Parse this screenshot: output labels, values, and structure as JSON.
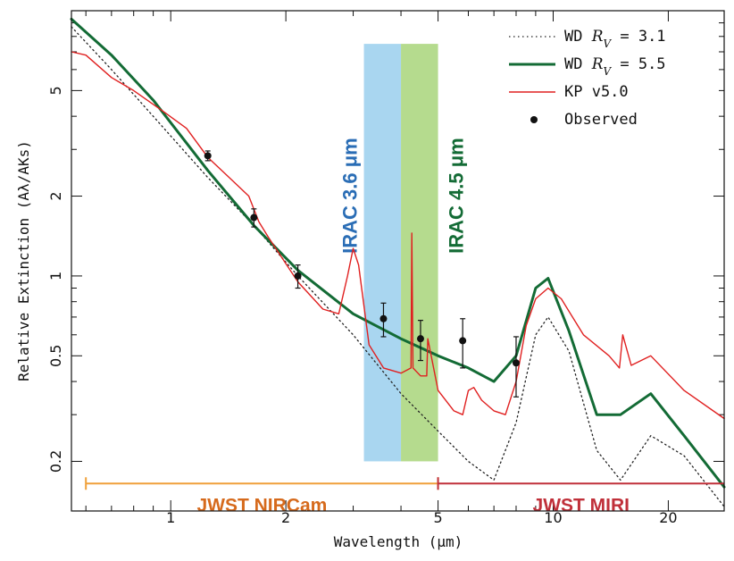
{
  "chart_data": {
    "type": "line",
    "xlabel": "Wavelength (μm)",
    "ylabel": "Relative Extinction (Aλ/AKs)",
    "xscale": "log",
    "yscale": "log",
    "xlim": [
      0.55,
      28
    ],
    "ylim": [
      0.13,
      10
    ],
    "xticks": [
      {
        "value": 1,
        "label": "1"
      },
      {
        "value": 2,
        "label": "2"
      },
      {
        "value": 5,
        "label": "5"
      },
      {
        "value": 10,
        "label": "10"
      },
      {
        "value": 20,
        "label": "20"
      }
    ],
    "yticks": [
      {
        "value": 0.2,
        "label": "0.2"
      },
      {
        "value": 0.5,
        "label": "0.5"
      },
      {
        "value": 1,
        "label": "1"
      },
      {
        "value": 2,
        "label": "2"
      },
      {
        "value": 5,
        "label": "5"
      }
    ],
    "legend": {
      "placement": "top-right",
      "entries": [
        {
          "label": "WD RV = 3.1",
          "prefix": "WD ",
          "rv": "R",
          "rv_sub": "V",
          "suffix": " = 3.1",
          "color": "#222222",
          "style": "dotted"
        },
        {
          "label": "WD RV = 5.5",
          "prefix": "WD ",
          "rv": "R",
          "rv_sub": "V",
          "suffix": " = 5.5",
          "color": "#136b35",
          "style": "solid-thick"
        },
        {
          "label": "KP v5.0",
          "prefix": "KP v5.0",
          "rv": "",
          "rv_sub": "",
          "suffix": "",
          "color": "#e02020",
          "style": "solid"
        },
        {
          "label": "Observed",
          "prefix": "Observed",
          "rv": "",
          "rv_sub": "",
          "suffix": "",
          "color": "#111111",
          "style": "marker"
        }
      ]
    },
    "series": [
      {
        "name": "WD RV = 3.1",
        "color": "#222222",
        "style": "dotted",
        "x": [
          0.55,
          0.7,
          0.9,
          1.25,
          1.65,
          2.15,
          3.0,
          4.0,
          5.0,
          6.0,
          7.0,
          8.0,
          9.0,
          9.7,
          11.0,
          13.0,
          15.0,
          18.0,
          22.0,
          28.0
        ],
        "y": [
          8.7,
          6.0,
          4.0,
          2.35,
          1.55,
          1.0,
          0.6,
          0.36,
          0.26,
          0.2,
          0.17,
          0.28,
          0.6,
          0.7,
          0.52,
          0.22,
          0.17,
          0.25,
          0.21,
          0.135
        ]
      },
      {
        "name": "WD RV = 5.5",
        "color": "#136b35",
        "style": "solid",
        "x": [
          0.55,
          0.7,
          0.9,
          1.25,
          1.65,
          2.15,
          3.0,
          4.0,
          5.0,
          6.0,
          7.0,
          8.0,
          9.0,
          9.7,
          11.0,
          13.0,
          15.0,
          18.0,
          22.0,
          28.0
        ],
        "y": [
          9.3,
          6.8,
          4.6,
          2.5,
          1.55,
          1.05,
          0.72,
          0.58,
          0.5,
          0.45,
          0.4,
          0.5,
          0.9,
          0.98,
          0.62,
          0.3,
          0.3,
          0.36,
          0.25,
          0.16
        ]
      },
      {
        "name": "KP v5.0",
        "color": "#e02020",
        "style": "solid",
        "x": [
          0.55,
          0.6,
          0.7,
          0.8,
          0.95,
          1.1,
          1.25,
          1.4,
          1.6,
          1.7,
          1.8,
          2.15,
          2.5,
          2.75,
          2.9,
          3.0,
          3.1,
          3.3,
          3.6,
          4.0,
          4.25,
          4.27,
          4.3,
          4.5,
          4.67,
          4.7,
          5.0,
          5.5,
          5.8,
          6.0,
          6.2,
          6.5,
          7.0,
          7.5,
          8.0,
          8.5,
          9.0,
          9.7,
          10.5,
          12.0,
          14.0,
          14.9,
          15.2,
          16.0,
          18.0,
          22.0,
          28.0
        ],
        "y": [
          7.0,
          6.8,
          5.6,
          5.0,
          4.2,
          3.6,
          2.8,
          2.4,
          2.0,
          1.6,
          1.4,
          0.95,
          0.75,
          0.72,
          1.0,
          1.27,
          1.1,
          0.55,
          0.45,
          0.43,
          0.45,
          1.45,
          0.45,
          0.42,
          0.42,
          0.58,
          0.37,
          0.31,
          0.3,
          0.37,
          0.38,
          0.34,
          0.31,
          0.3,
          0.4,
          0.65,
          0.82,
          0.9,
          0.82,
          0.6,
          0.5,
          0.45,
          0.6,
          0.46,
          0.5,
          0.37,
          0.29
        ]
      }
    ],
    "observed": {
      "name": "Observed",
      "x": [
        1.25,
        1.65,
        2.15,
        3.6,
        4.5,
        5.8,
        8.0
      ],
      "y": [
        2.84,
        1.66,
        1.0,
        0.69,
        0.58,
        0.57,
        0.47
      ],
      "yerr": [
        0.12,
        0.13,
        0.1,
        0.1,
        0.1,
        0.12,
        0.12
      ]
    },
    "bands": [
      {
        "label": "IRAC 3.6 μm",
        "x0": 3.2,
        "x1": 4.0,
        "y0": 0.2,
        "y1": 7.5,
        "color": "#a9d6f0",
        "text_color": "#2a6db5"
      },
      {
        "label": "IRAC 4.5 μm",
        "x0": 4.0,
        "x1": 5.0,
        "y0": 0.2,
        "y1": 7.5,
        "color": "#b5db8e",
        "text_color": "#136b35"
      }
    ],
    "ranges": [
      {
        "label": "JWST NIRCam",
        "x0": 0.6,
        "x1": 5.0,
        "y": 0.165,
        "color": "#f0a03a",
        "text_color": "#d66a1c"
      },
      {
        "label": "JWST MIRI",
        "x0": 5.0,
        "x1": 28.0,
        "y": 0.165,
        "color": "#c0303a",
        "text_color": "#c0303a"
      }
    ]
  }
}
